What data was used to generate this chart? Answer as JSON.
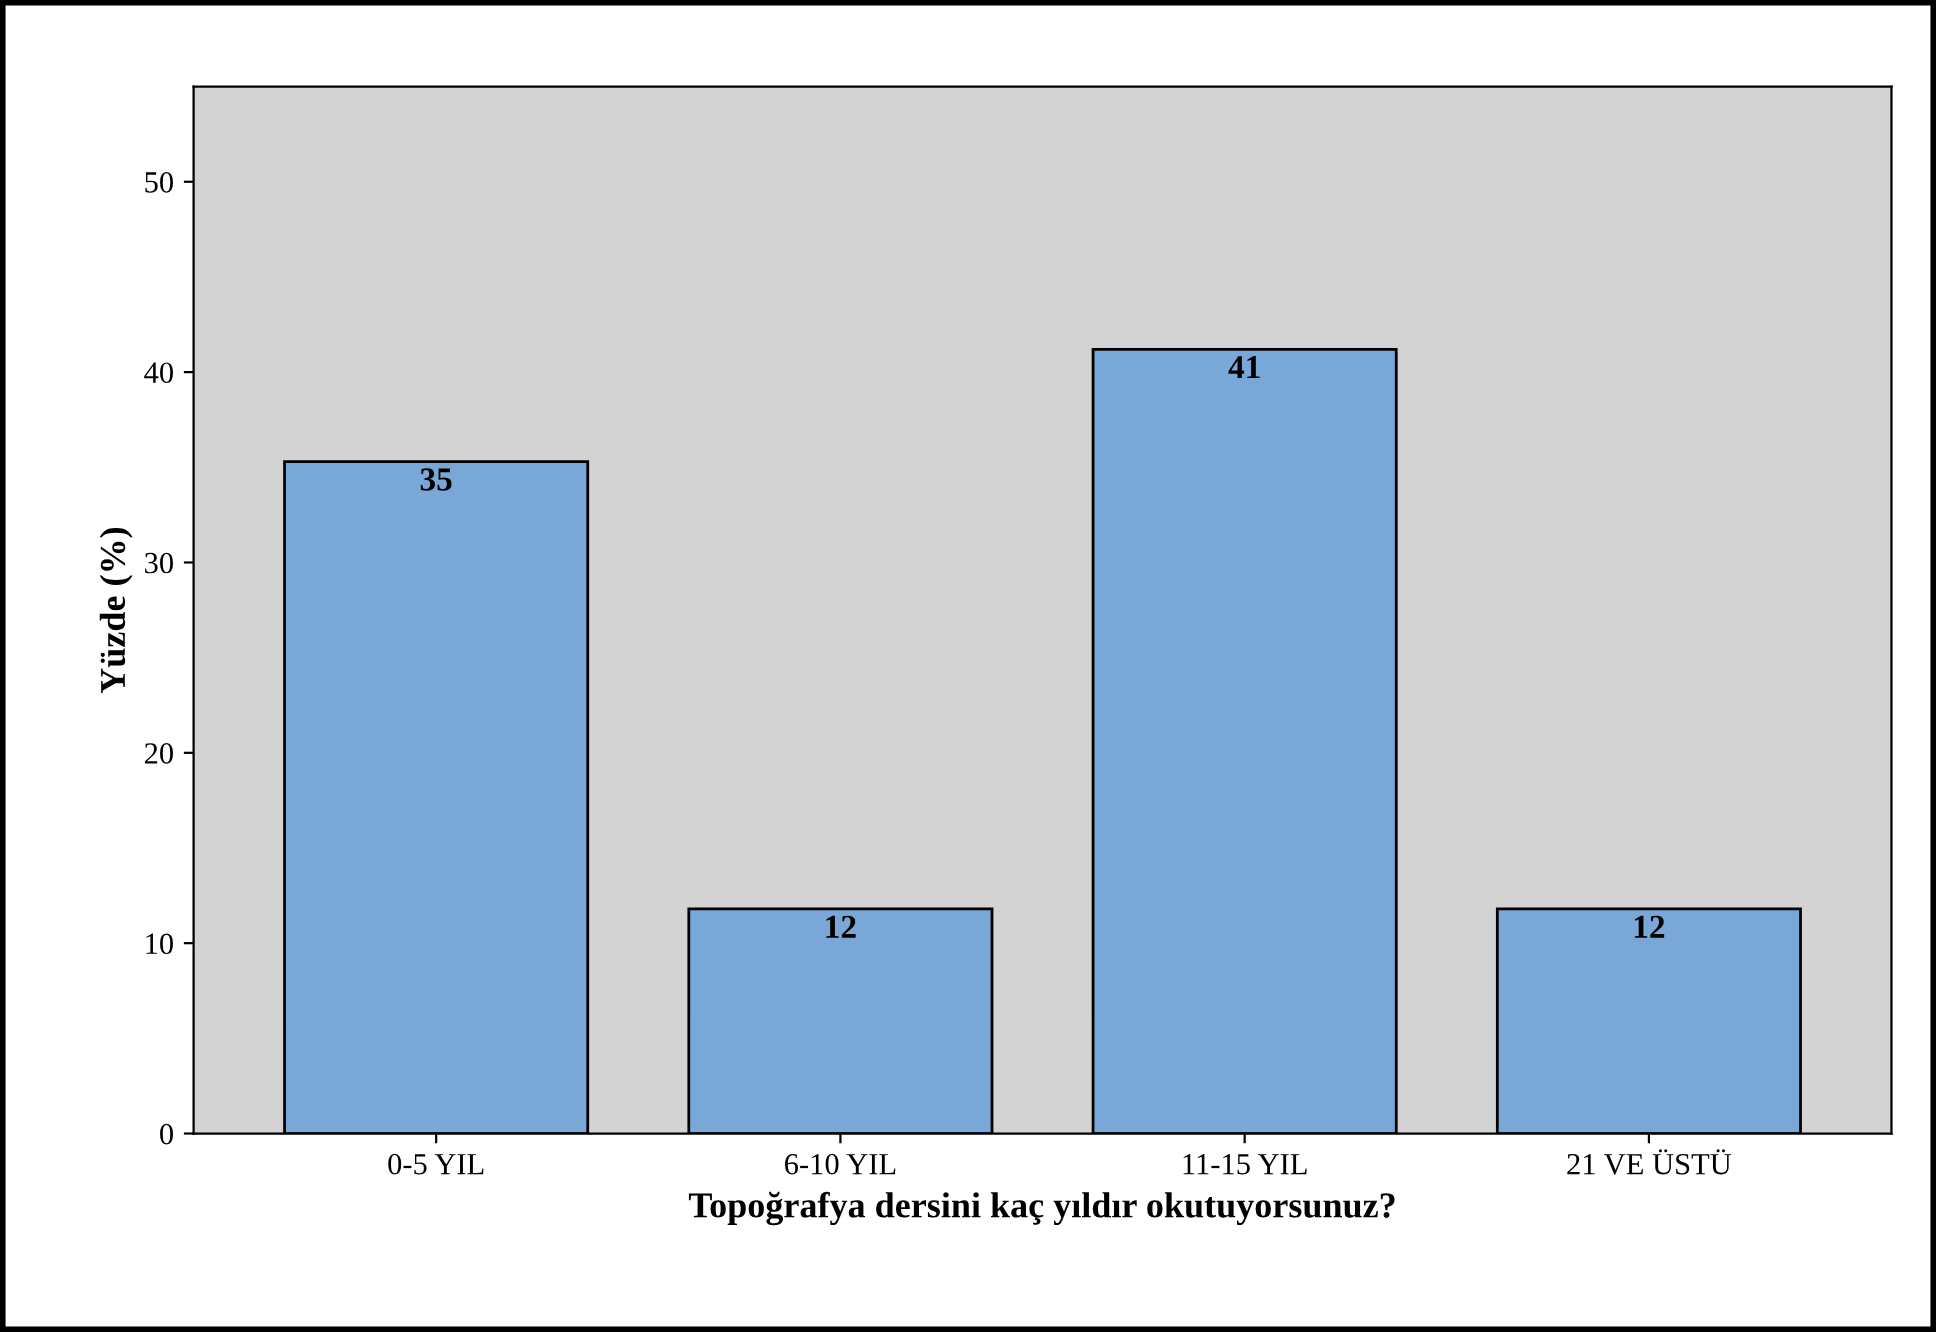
{
  "chart_data": {
    "type": "bar",
    "xlabel": "Topoğrafya dersini kaç yıldır okutuyorsunuz?",
    "ylabel": "Yüzde (%)",
    "categories": [
      "0-5 YIL",
      "6-10 YIL",
      "11-15 YIL",
      "21 VE ÜSTÜ"
    ],
    "values": [
      35.3,
      11.8,
      41.2,
      11.8
    ],
    "value_labels": [
      "35",
      "12",
      "41",
      "12"
    ],
    "color": "#79a7d7",
    "ylim": [
      0,
      55
    ],
    "yticks": [
      0,
      10,
      20,
      30,
      40,
      50
    ],
    "grid": false,
    "legend": false
  }
}
